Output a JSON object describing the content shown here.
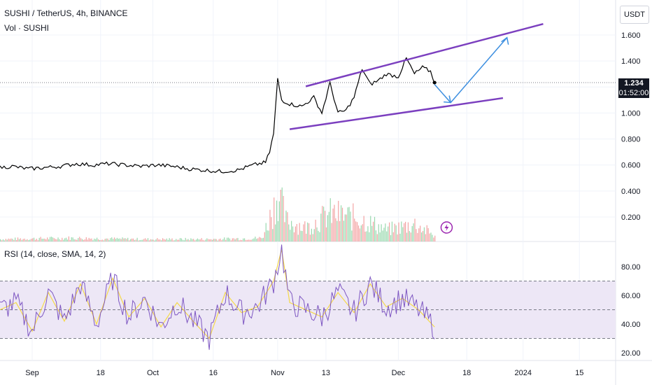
{
  "header": {
    "title": "SUSHI / TetherUS, 4h, BINANCE",
    "volume_label": "Vol · SUSHI",
    "rsi_label": "RSI (14, close, SMA, 14, 2)"
  },
  "price_scale": {
    "currency": "USDT",
    "current_price": "1.234",
    "countdown": "01:52:00",
    "ticks": [
      "1.600",
      "1.400",
      "1.200",
      "1.000",
      "0.800",
      "0.600",
      "0.400",
      "0.200"
    ]
  },
  "rsi_scale": {
    "ticks": [
      "80.00",
      "60.00",
      "40.00",
      "20.00"
    ]
  },
  "time_axis": {
    "labels": [
      "Sep",
      "18",
      "Oct",
      "16",
      "Nov",
      "13",
      "Dec",
      "18",
      "2024",
      "15"
    ]
  },
  "colors": {
    "price_line": "#000000",
    "channel": "#7b3fbf",
    "projection_arrow": "#3d8fe0",
    "rsi_line": "#7e57c2",
    "rsi_ma": "#f5d94a",
    "rsi_band": "#ede7f6",
    "volume_up": "#7fcf9a",
    "volume_down": "#f08c8c",
    "grid": "#f0f3fa"
  },
  "chart_data": {
    "type": "line",
    "x_unit": "date",
    "price": {
      "x": [
        "2023-08-24",
        "2023-08-27",
        "2023-08-31",
        "2023-09-04",
        "2023-09-08",
        "2023-09-12",
        "2023-09-16",
        "2023-09-20",
        "2023-09-24",
        "2023-09-28",
        "2023-10-02",
        "2023-10-06",
        "2023-10-10",
        "2023-10-14",
        "2023-10-18",
        "2023-10-22",
        "2023-10-26",
        "2023-10-29",
        "2023-10-30",
        "2023-10-31",
        "2023-11-01",
        "2023-11-02",
        "2023-11-04",
        "2023-11-07",
        "2023-11-10",
        "2023-11-12",
        "2023-11-14",
        "2023-11-16",
        "2023-11-18",
        "2023-11-20",
        "2023-11-22",
        "2023-11-24",
        "2023-11-26",
        "2023-11-28",
        "2023-12-01",
        "2023-12-03",
        "2023-12-05",
        "2023-12-07",
        "2023-12-09",
        "2023-12-10"
      ],
      "y": [
        0.58,
        0.59,
        0.57,
        0.58,
        0.59,
        0.61,
        0.6,
        0.61,
        0.6,
        0.59,
        0.6,
        0.59,
        0.57,
        0.56,
        0.55,
        0.56,
        0.6,
        0.62,
        0.7,
        0.84,
        1.26,
        1.1,
        1.07,
        1.05,
        1.12,
        1.0,
        1.23,
        1.0,
        1.02,
        1.12,
        1.34,
        1.22,
        1.25,
        1.3,
        1.28,
        1.42,
        1.3,
        1.35,
        1.32,
        1.234
      ]
    },
    "rsi": {
      "x": [
        "2023-08-24",
        "2023-08-28",
        "2023-09-01",
        "2023-09-05",
        "2023-09-09",
        "2023-09-13",
        "2023-09-17",
        "2023-09-21",
        "2023-09-25",
        "2023-09-29",
        "2023-10-03",
        "2023-10-07",
        "2023-10-11",
        "2023-10-15",
        "2023-10-19",
        "2023-10-23",
        "2023-10-27",
        "2023-10-31",
        "2023-11-02",
        "2023-11-04",
        "2023-11-08",
        "2023-11-12",
        "2023-11-16",
        "2023-11-20",
        "2023-11-24",
        "2023-11-28",
        "2023-12-02",
        "2023-12-06",
        "2023-12-10"
      ],
      "y": [
        50,
        55,
        35,
        62,
        42,
        68,
        40,
        72,
        45,
        58,
        38,
        55,
        42,
        30,
        62,
        48,
        52,
        70,
        92,
        55,
        50,
        45,
        62,
        48,
        68,
        52,
        58,
        50,
        38
      ]
    },
    "rsi_bands": [
      70,
      50,
      30
    ],
    "volume": {
      "x": [
        "2023-08-24",
        "2023-09-10",
        "2023-09-28",
        "2023-10-15",
        "2023-10-28",
        "2023-10-31",
        "2023-11-01",
        "2023-11-03",
        "2023-11-08",
        "2023-11-14",
        "2023-11-21",
        "2023-11-28",
        "2023-12-05",
        "2023-12-10"
      ],
      "y": [
        0.02,
        0.03,
        0.02,
        0.02,
        0.03,
        0.3,
        0.42,
        0.18,
        0.12,
        0.24,
        0.2,
        0.1,
        0.15,
        0.05
      ]
    },
    "ylim_price": [
      0.0,
      1.75
    ],
    "ylim_rsi": [
      15,
      100
    ]
  }
}
